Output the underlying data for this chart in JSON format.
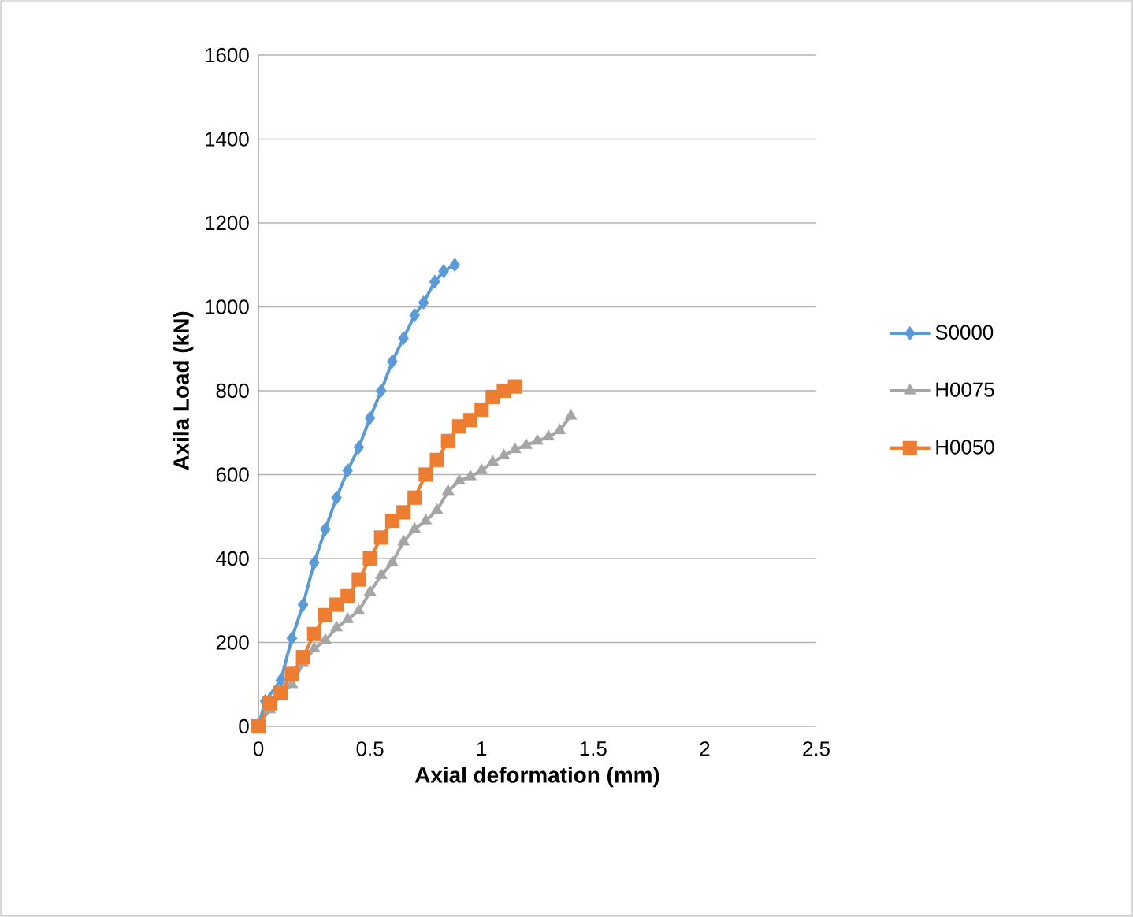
{
  "chart_data": {
    "type": "line",
    "xlabel": "Axial deformation (mm)",
    "ylabel": "Axila Load  (kN)",
    "xlim": [
      0,
      2.5
    ],
    "ylim": [
      0,
      1600
    ],
    "xticks": [
      0,
      0.5,
      1,
      1.5,
      2,
      2.5
    ],
    "yticks": [
      0,
      200,
      400,
      600,
      800,
      1000,
      1200,
      1400,
      1600
    ],
    "grid": "y",
    "legend": "right",
    "line_style": "solid",
    "series": [
      {
        "name": "S0000",
        "color": "#5b9bd5",
        "marker": "diamond",
        "x": [
          0,
          0.03,
          0.1,
          0.15,
          0.2,
          0.25,
          0.3,
          0.35,
          0.4,
          0.45,
          0.5,
          0.55,
          0.6,
          0.65,
          0.7,
          0.74,
          0.79,
          0.83,
          0.88
        ],
        "values": [
          0,
          60,
          110,
          210,
          290,
          390,
          470,
          545,
          610,
          665,
          735,
          800,
          870,
          925,
          980,
          1010,
          1060,
          1085,
          1100
        ]
      },
      {
        "name": "H0075",
        "color": "#a5a5a5",
        "marker": "triangle",
        "x": [
          0,
          0.05,
          0.1,
          0.15,
          0.2,
          0.25,
          0.3,
          0.35,
          0.4,
          0.45,
          0.5,
          0.55,
          0.6,
          0.65,
          0.7,
          0.75,
          0.8,
          0.85,
          0.9,
          0.95,
          1.0,
          1.05,
          1.1,
          1.15,
          1.2,
          1.25,
          1.3,
          1.35,
          1.4
        ],
        "values": [
          0,
          40,
          75,
          100,
          150,
          185,
          205,
          235,
          255,
          275,
          320,
          360,
          390,
          440,
          470,
          490,
          515,
          560,
          585,
          595,
          610,
          630,
          645,
          660,
          670,
          680,
          690,
          705,
          740
        ]
      },
      {
        "name": "H0050",
        "color": "#ed7d31",
        "marker": "square",
        "x": [
          0,
          0.05,
          0.1,
          0.15,
          0.2,
          0.25,
          0.3,
          0.35,
          0.4,
          0.45,
          0.5,
          0.55,
          0.6,
          0.65,
          0.7,
          0.75,
          0.8,
          0.85,
          0.9,
          0.95,
          1.0,
          1.05,
          1.1,
          1.15
        ],
        "values": [
          0,
          55,
          80,
          125,
          165,
          220,
          265,
          290,
          310,
          350,
          400,
          450,
          490,
          510,
          545,
          600,
          635,
          680,
          715,
          730,
          755,
          785,
          800,
          810
        ]
      }
    ]
  }
}
